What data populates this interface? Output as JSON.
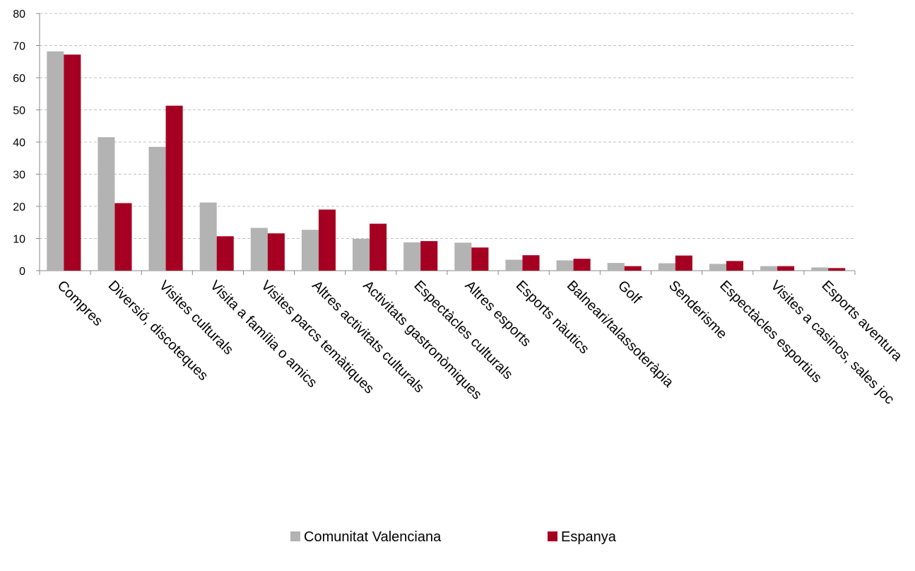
{
  "chart_data": {
    "type": "bar",
    "categories": [
      "Compres",
      "Diversió, discoteques",
      "Visites culturals",
      "Visita a família o amics",
      "Visites parcs temàtiques",
      "Altres activitats culturals",
      "Activitats gastronòmiques",
      "Espectàcles culturals",
      "Altres esports",
      "Esports nàutics",
      "Balneari/talassoteràpia",
      "Golf",
      "Senderisme",
      "Espectàcles esportius",
      "Visites a casinos, sales joc",
      "Esports aventura"
    ],
    "series": [
      {
        "name": "Comunitat Valenciana",
        "color": "#b3b3b3",
        "values": [
          68.2,
          41.5,
          38.5,
          21.2,
          13.3,
          12.7,
          9.9,
          8.8,
          8.7,
          3.4,
          3.2,
          2.4,
          2.3,
          2.1,
          1.4,
          1.0
        ]
      },
      {
        "name": "Espanya",
        "color": "#a50021",
        "values": [
          67.2,
          21,
          51.3,
          10.7,
          11.6,
          19,
          14.6,
          9.2,
          7.2,
          4.8,
          3.7,
          1.4,
          4.7,
          3.0,
          1.4,
          0.8
        ]
      }
    ],
    "ylim": [
      0,
      80
    ],
    "yticks": [
      0,
      10,
      20,
      30,
      40,
      50,
      60,
      70,
      80
    ],
    "grid": true,
    "legend": "bottom"
  }
}
